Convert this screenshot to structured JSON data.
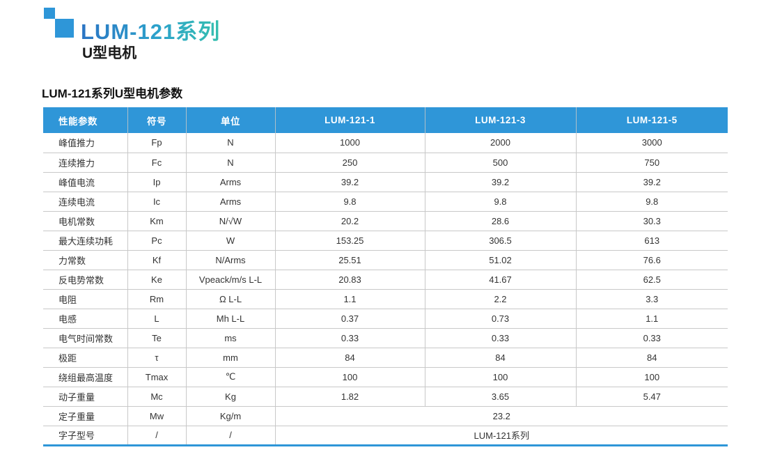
{
  "brand": {
    "title": "LUM-121系列",
    "subtitle": "U型电机",
    "accent_blue": "#2E96D8",
    "title_gradient_start": "#2B74C4",
    "title_gradient_end": "#35BFAE"
  },
  "section": {
    "title": "LUM-121系列U型电机参数"
  },
  "table": {
    "header_bg": "#2F96D8",
    "grid_color": "#c8c8c8",
    "bottom_border_color": "#2E96D8",
    "headers": [
      "性能参数",
      "符号",
      "单位",
      "LUM-121-1",
      "LUM-121-3",
      "LUM-121-5"
    ],
    "rows": [
      {
        "param": "峰值推力",
        "symbol": "Fp",
        "unit": "N",
        "values": [
          "1000",
          "2000",
          "3000"
        ]
      },
      {
        "param": "连续推力",
        "symbol": "Fc",
        "unit": "N",
        "values": [
          "250",
          "500",
          "750"
        ]
      },
      {
        "param": "峰值电流",
        "symbol": "Ip",
        "unit": "Arms",
        "values": [
          "39.2",
          "39.2",
          "39.2"
        ]
      },
      {
        "param": "连续电流",
        "symbol": "Ic",
        "unit": "Arms",
        "values": [
          "9.8",
          "9.8",
          "9.8"
        ]
      },
      {
        "param": "电机常数",
        "symbol": "Km",
        "unit": "N/√W",
        "values": [
          "20.2",
          "28.6",
          "30.3"
        ]
      },
      {
        "param": "最大连续功耗",
        "symbol": "Pc",
        "unit": "W",
        "values": [
          "153.25",
          "306.5",
          "613"
        ]
      },
      {
        "param": "力常数",
        "symbol": "Kf",
        "unit": "N/Arms",
        "values": [
          "25.51",
          "51.02",
          "76.6"
        ]
      },
      {
        "param": "反电势常数",
        "symbol": "Ke",
        "unit": "Vpeack/m/s L-L",
        "values": [
          "20.83",
          "41.67",
          "62.5"
        ]
      },
      {
        "param": "电阻",
        "symbol": "Rm",
        "unit": "Ω L-L",
        "values": [
          "1.1",
          "2.2",
          "3.3"
        ]
      },
      {
        "param": "电感",
        "symbol": "L",
        "unit": "Mh L-L",
        "values": [
          "0.37",
          "0.73",
          "1.1"
        ]
      },
      {
        "param": "电气时间常数",
        "symbol": "Te",
        "unit": "ms",
        "values": [
          "0.33",
          "0.33",
          "0.33"
        ]
      },
      {
        "param": "极距",
        "symbol": "τ",
        "unit": "mm",
        "values": [
          "84",
          "84",
          "84"
        ]
      },
      {
        "param": "绕组最高温度",
        "symbol": "Tmax",
        "unit": "℃",
        "values": [
          "100",
          "100",
          "100"
        ]
      },
      {
        "param": "动子重量",
        "symbol": "Mc",
        "unit": "Kg",
        "values": [
          "1.82",
          "3.65",
          "5.47"
        ]
      },
      {
        "param": "定子重量",
        "symbol": "Mw",
        "unit": "Kg/m",
        "values": [
          "23.2"
        ],
        "merged": true
      },
      {
        "param": "字子型号",
        "symbol": "/",
        "unit": "/",
        "values": [
          "LUM-121系列"
        ],
        "merged": true
      }
    ]
  }
}
